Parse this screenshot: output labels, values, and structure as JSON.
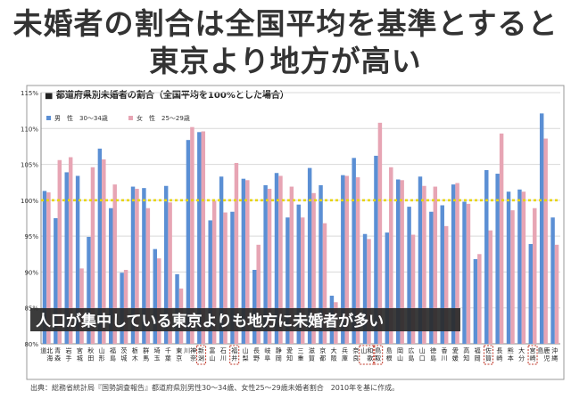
{
  "page": {
    "title_line1": "未婚者の割合は全国平均を基準とすると",
    "title_line2": "東京より地方が高い",
    "source": "出典：総務省統計局『国勢調査報告』都道府県別男性30～34歳、女性25～29歳未婚者割合　2010年を基に作成。"
  },
  "chart_data": {
    "type": "bar",
    "title": "■ 都道府県別未婚者の割合（全国平均を100%とした場合）",
    "annotation": "人口が集中している東京よりも地方に未婚者が多い",
    "ylim": [
      80,
      115
    ],
    "yticks": [
      "80%",
      "85%",
      "90%",
      "95%",
      "100%",
      "105%",
      "110%",
      "115%"
    ],
    "ytick_values": [
      80,
      85,
      90,
      95,
      100,
      105,
      110,
      115
    ],
    "reference_line": 100,
    "colors": {
      "male": "#5b8fd4",
      "female": "#e7a5b4",
      "reference": "#e8d400",
      "annotation_bg": "#2a2a2a"
    },
    "categories": [
      "北海道",
      "青森",
      "岩手",
      "宮城",
      "秋田",
      "山形",
      "福島",
      "茨城",
      "栃木",
      "群馬",
      "埼玉",
      "千葉",
      "東京",
      "神奈川",
      "新潟",
      "富山",
      "石川",
      "福井",
      "山梨",
      "長野",
      "岐阜",
      "静岡",
      "愛知",
      "三重",
      "滋賀",
      "京都",
      "大阪",
      "兵庫",
      "奈良",
      "和歌山",
      "鳥取",
      "島根",
      "岡山",
      "広島",
      "山口",
      "徳島",
      "香川",
      "愛媛",
      "高知",
      "福岡",
      "佐賀",
      "長崎",
      "熊本",
      "大分",
      "宮崎",
      "鹿児島",
      "沖縄"
    ],
    "highlighted": [
      "新潟",
      "福井",
      "和歌山",
      "鳥取",
      "佐賀",
      "宮崎"
    ],
    "series": [
      {
        "name": "男　性　30～34歳",
        "values": [
          101.3,
          97.5,
          103.9,
          103.4,
          94.9,
          107.2,
          98.9,
          89.9,
          101.9,
          101.7,
          93.2,
          102.0,
          89.7,
          108.4,
          109.5,
          97.2,
          103.3,
          98.4,
          103.0,
          90.3,
          102.1,
          103.8,
          97.6,
          99.4,
          104.5,
          102.1,
          86.7,
          103.5,
          105.9,
          95.3,
          106.2,
          95.5,
          102.9,
          99.1,
          103.3,
          98.4,
          99.3,
          102.2,
          99.8,
          91.8,
          104.2,
          103.7,
          101.2,
          101.5,
          93.9,
          112.1,
          97.6
        ]
      },
      {
        "name": "女　性　25～29歳",
        "values": [
          101.1,
          105.6,
          106.0,
          90.5,
          104.6,
          105.7,
          102.2,
          90.3,
          101.6,
          98.9,
          91.9,
          99.7,
          87.7,
          110.2,
          109.6,
          99.9,
          98.3,
          105.2,
          102.8,
          93.8,
          101.6,
          103.4,
          101.9,
          97.6,
          101.0,
          96.8,
          85.8,
          103.4,
          103.2,
          94.6,
          110.8,
          104.6,
          102.8,
          95.2,
          102.0,
          101.9,
          96.4,
          102.4,
          99.5,
          92.5,
          95.8,
          109.3,
          98.6,
          101.2,
          98.9,
          108.6,
          93.8
        ]
      }
    ]
  }
}
